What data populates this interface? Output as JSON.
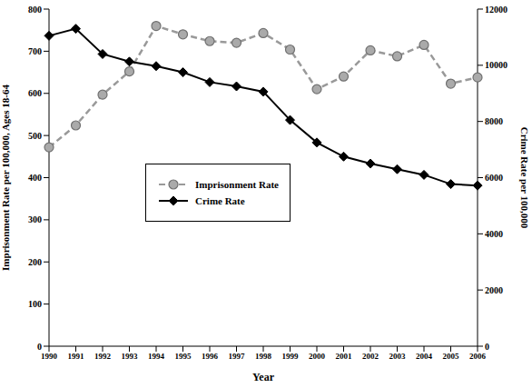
{
  "chart_data": {
    "type": "line",
    "x_label": "Year",
    "y_label": "Imprisonment Rate per 100,000, Ages 18-64",
    "y2_label": "Crime Rate per 100,000",
    "categories": [
      "1990",
      "1991",
      "1992",
      "1993",
      "1994",
      "1995",
      "1996",
      "1997",
      "1998",
      "1999",
      "2000",
      "2001",
      "2002",
      "2003",
      "2004",
      "2005",
      "2006"
    ],
    "series": [
      {
        "name": "Imprisonment Rate",
        "color": "#999999",
        "line_style": "dashed",
        "marker": "circle",
        "values": [
          472,
          524,
          597,
          652,
          760,
          740,
          724,
          720,
          743,
          704,
          610,
          640,
          702,
          688,
          715,
          623,
          638
        ]
      },
      {
        "name": "Crime Rate",
        "color": "#000000",
        "line_style": "solid",
        "marker": "diamond",
        "axis": "y2",
        "values": [
          11050,
          11300,
          10400,
          10130,
          9970,
          9750,
          9400,
          9250,
          9060,
          8050,
          7250,
          6750,
          6500,
          6300,
          6100,
          5770,
          5720
        ]
      }
    ],
    "ylim": [
      0,
      800
    ],
    "yticks": [
      0,
      100,
      200,
      300,
      400,
      500,
      600,
      700,
      800
    ],
    "y2lim": [
      0,
      12000
    ],
    "y2ticks": [
      0,
      2000,
      4000,
      6000,
      8000,
      10000,
      12000
    ],
    "grid": false,
    "legend": "left"
  }
}
